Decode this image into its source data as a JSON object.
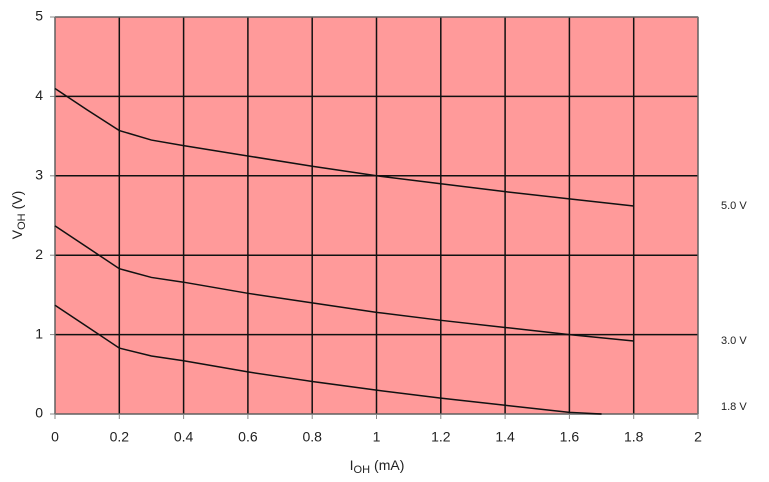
{
  "chart_data": {
    "type": "line",
    "x_label": {
      "main": "I",
      "sub": "OH",
      "unit": "(mA)"
    },
    "y_label": {
      "main": "V",
      "sub": "OH",
      "unit": "(V)"
    },
    "background": "#ff9a9a",
    "grid": true,
    "grid_color": "#111111",
    "xlim": [
      0,
      2
    ],
    "xticks": [
      0,
      0.2,
      0.4,
      0.6,
      0.8,
      1,
      1.2,
      1.4,
      1.6,
      1.8,
      2
    ],
    "ylim": [
      0,
      5
    ],
    "yticks": [
      0,
      1,
      2,
      3,
      4,
      5
    ],
    "series": [
      {
        "name": "5.0 V",
        "color": "#111111",
        "x": [
          0,
          0.1,
          0.2,
          0.3,
          0.4,
          0.6,
          0.8,
          1.0,
          1.2,
          1.4,
          1.6,
          1.8
        ],
        "values": [
          4.1,
          3.83,
          3.57,
          3.45,
          3.38,
          3.25,
          3.12,
          3.0,
          2.9,
          2.8,
          2.71,
          2.62
        ]
      },
      {
        "name": "3.0 V",
        "color": "#111111",
        "x": [
          0,
          0.1,
          0.2,
          0.3,
          0.4,
          0.6,
          0.8,
          1.0,
          1.2,
          1.4,
          1.6,
          1.8
        ],
        "values": [
          2.37,
          2.1,
          1.83,
          1.72,
          1.66,
          1.52,
          1.4,
          1.28,
          1.18,
          1.09,
          1.0,
          0.92
        ]
      },
      {
        "name": "1.8 V",
        "color": "#111111",
        "x": [
          0,
          0.1,
          0.2,
          0.3,
          0.4,
          0.6,
          0.8,
          1.0,
          1.2,
          1.4,
          1.6,
          1.7
        ],
        "values": [
          1.37,
          1.1,
          0.83,
          0.73,
          0.67,
          0.53,
          0.41,
          0.3,
          0.2,
          0.11,
          0.02,
          0
        ]
      }
    ]
  }
}
